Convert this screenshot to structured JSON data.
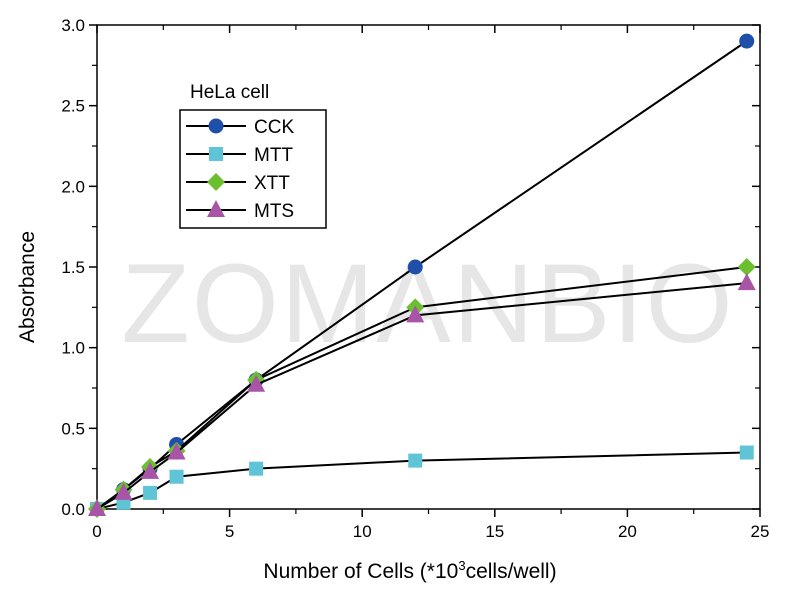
{
  "chart_data": {
    "type": "line",
    "title": "",
    "xlabel": "Number of Cells (*10",
    "xlabel_sup": "3",
    "xlabel_tail": "cells/well)",
    "ylabel": "Absorbance",
    "xlim": [
      0,
      25
    ],
    "ylim": [
      0,
      3.0
    ],
    "xticks": [
      0,
      5,
      10,
      15,
      20,
      25
    ],
    "xtick_labels": [
      "0",
      "5",
      "10",
      "15",
      "20",
      "25"
    ],
    "yticks": [
      0,
      0.5,
      1.0,
      1.5,
      2.0,
      2.5,
      3.0
    ],
    "ytick_labels": [
      "0.0",
      "0.5",
      "1.0",
      "1.5",
      "2.0",
      "2.5",
      "3.0"
    ],
    "grid": false,
    "legend_title": "HeLa cell",
    "legend_placement": "top-left",
    "watermark": "ZOMANBIO",
    "x": [
      0,
      1,
      2,
      3,
      6,
      12,
      24.5
    ],
    "series": [
      {
        "name": "CCK",
        "marker": "circle",
        "color": "#1f4fa8",
        "values": [
          0,
          0.12,
          0.25,
          0.4,
          0.8,
          1.5,
          2.9
        ]
      },
      {
        "name": "MTT",
        "marker": "square",
        "color": "#5fc4d6",
        "values": [
          0,
          0.04,
          0.1,
          0.2,
          0.25,
          0.3,
          0.35
        ]
      },
      {
        "name": "XTT",
        "marker": "diamond",
        "color": "#6cbf2f",
        "values": [
          0,
          0.12,
          0.26,
          0.36,
          0.8,
          1.25,
          1.5
        ]
      },
      {
        "name": "MTS",
        "marker": "triangle",
        "color": "#a855a8",
        "values": [
          0,
          0.1,
          0.23,
          0.35,
          0.77,
          1.2,
          1.4
        ]
      }
    ]
  }
}
